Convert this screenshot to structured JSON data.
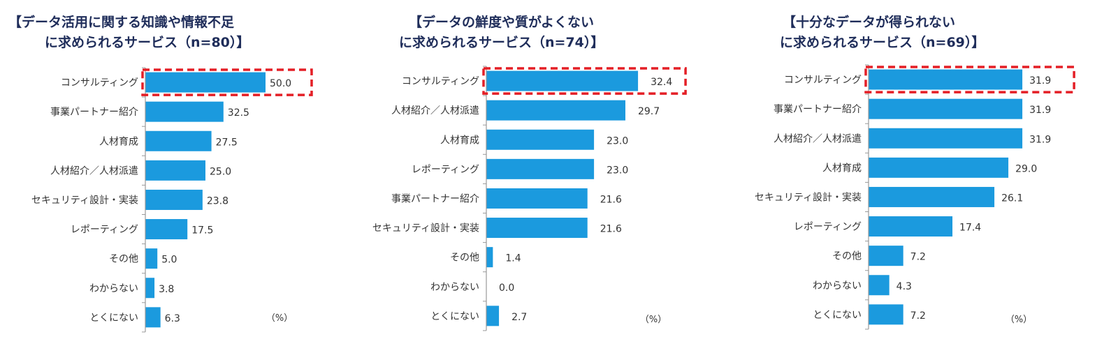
{
  "chart_data": [
    {
      "type": "bar",
      "orientation": "horizontal",
      "title_line1": "【データ活用に関する知識や情報不足",
      "title_line2": "に求められるサービス（n=80）】",
      "unit": "（%）",
      "categories": [
        "コンサルティング",
        "事業パートナー紹介",
        "人材育成",
        "人材紹介／人材派遣",
        "セキュリティ設計・実装",
        "レポーティング",
        "その他",
        "わからない",
        "とくにない"
      ],
      "values": [
        50.0,
        32.5,
        27.5,
        25.0,
        23.8,
        17.5,
        5.0,
        3.8,
        6.3
      ],
      "value_labels": [
        "50.0",
        "32.5",
        "27.5",
        "25.0",
        "23.8",
        "17.5",
        "5.0",
        "3.8",
        "6.3"
      ],
      "highlight_index": 0,
      "xlim": [
        0,
        50
      ],
      "bar_color": "#1b9ade",
      "highlight_color": "#e41f26"
    },
    {
      "type": "bar",
      "orientation": "horizontal",
      "title_line1": "【データの鮮度や質がよくない",
      "title_line2": "に求められるサービス（n=74）】",
      "unit": "（%）",
      "categories": [
        "コンサルティング",
        "人材紹介／人材派遣",
        "人材育成",
        "レポーティング",
        "事業パートナー紹介",
        "セキュリティ設計・実装",
        "その他",
        "わからない",
        "とくにない"
      ],
      "values": [
        32.4,
        29.7,
        23.0,
        23.0,
        21.6,
        21.6,
        1.4,
        0.0,
        2.7
      ],
      "value_labels": [
        "32.4",
        "29.7",
        "23.0",
        "23.0",
        "21.6",
        "21.6",
        "1.4",
        "0.0",
        "2.7"
      ],
      "highlight_index": 0,
      "xlim": [
        0,
        50
      ],
      "bar_color": "#1b9ade",
      "highlight_color": "#e41f26"
    },
    {
      "type": "bar",
      "orientation": "horizontal",
      "title_line1": "【十分なデータが得られない",
      "title_line2": "に求められるサービス（n=69）】",
      "unit": "（%）",
      "categories": [
        "コンサルティング",
        "事業パートナー紹介",
        "人材紹介／人材派遣",
        "人材育成",
        "セキュリティ設計・実装",
        "レポーティング",
        "その他",
        "わからない",
        "とくにない"
      ],
      "values": [
        31.9,
        31.9,
        31.9,
        29.0,
        26.1,
        17.4,
        7.2,
        4.3,
        7.2
      ],
      "value_labels": [
        "31.9",
        "31.9",
        "31.9",
        "29.0",
        "26.1",
        "17.4",
        "7.2",
        "4.3",
        "7.2"
      ],
      "highlight_index": 0,
      "xlim": [
        0,
        50
      ],
      "bar_color": "#1b9ade",
      "highlight_color": "#e41f26"
    }
  ]
}
